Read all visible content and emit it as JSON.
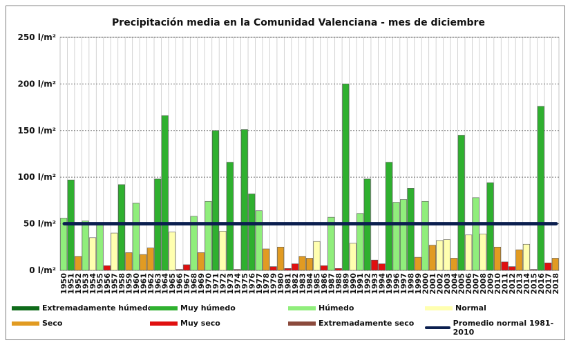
{
  "chart_data": {
    "type": "bar",
    "title": "Precipitación media en la Comunidad Valenciana - mes de diciembre",
    "ylim": [
      0,
      250
    ],
    "yticks": [
      "0 l/m²",
      "50 l/m²",
      "100 l/m²",
      "150 l/m²",
      "200 l/m²",
      "250 l/m²"
    ],
    "ytick_values": [
      0,
      50,
      100,
      150,
      200,
      250
    ],
    "grid": true,
    "categories": [
      "1950",
      "1951",
      "1952",
      "1953",
      "1954",
      "1955",
      "1956",
      "1957",
      "1958",
      "1959",
      "1960",
      "1961",
      "1962",
      "1963",
      "1964",
      "1965",
      "1966",
      "1967",
      "1968",
      "1969",
      "1970",
      "1971",
      "1972",
      "1973",
      "1974",
      "1975",
      "1976",
      "1977",
      "1978",
      "1979",
      "1980",
      "1981",
      "1982",
      "1983",
      "1984",
      "1985",
      "1986",
      "1987",
      "1988",
      "1989",
      "1990",
      "1991",
      "1992",
      "1993",
      "1994",
      "1995",
      "1996",
      "1997",
      "1998",
      "1999",
      "2000",
      "2001",
      "2002",
      "2003",
      "2004",
      "2005",
      "2006",
      "2007",
      "2008",
      "2009",
      "2010",
      "2011",
      "2012",
      "2013",
      "2014",
      "2015",
      "2016",
      "2017",
      "2018"
    ],
    "values": [
      56,
      97,
      15,
      53,
      35,
      50,
      5,
      40,
      92,
      19,
      72,
      17,
      24,
      98,
      166,
      41,
      1,
      6,
      58,
      19,
      74,
      150,
      42,
      116,
      1,
      151,
      82,
      64,
      23,
      4,
      25,
      2,
      7,
      15,
      13,
      31,
      5,
      57,
      2,
      200,
      29,
      61,
      98,
      11,
      7,
      116,
      73,
      76,
      88,
      14,
      74,
      27,
      32,
      33,
      13,
      145,
      38,
      78,
      39,
      94,
      25,
      9,
      4,
      22,
      28,
      1,
      176,
      8,
      13
    ],
    "classes": [
      "humedo",
      "muy_humedo",
      "seco",
      "humedo",
      "normal",
      "humedo",
      "muy_seco",
      "normal",
      "muy_humedo",
      "seco",
      "humedo",
      "seco",
      "seco",
      "muy_humedo",
      "muy_humedo",
      "normal",
      "extremadamente_seco",
      "muy_seco",
      "humedo",
      "seco",
      "humedo",
      "muy_humedo",
      "normal",
      "muy_humedo",
      "extremadamente_seco",
      "muy_humedo",
      "muy_humedo",
      "humedo",
      "seco",
      "muy_seco",
      "seco",
      "muy_seco",
      "muy_seco",
      "seco",
      "seco",
      "normal",
      "muy_seco",
      "humedo",
      "muy_seco",
      "muy_humedo",
      "normal",
      "humedo",
      "muy_humedo",
      "muy_seco",
      "muy_seco",
      "muy_humedo",
      "humedo",
      "humedo",
      "muy_humedo",
      "seco",
      "humedo",
      "seco",
      "normal",
      "normal",
      "seco",
      "muy_humedo",
      "normal",
      "humedo",
      "normal",
      "muy_humedo",
      "seco",
      "muy_seco",
      "muy_seco",
      "seco",
      "normal",
      "extremadamente_seco",
      "muy_humedo",
      "muy_seco",
      "seco"
    ],
    "reference_line": {
      "name": "Promedio normal 1981-2010",
      "value": 50,
      "color": "#0b1f4f"
    },
    "class_colors": {
      "extremadamente_humedo": "#0f6b1a",
      "muy_humedo": "#2fb02f",
      "humedo": "#90ee7c",
      "normal": "#ffffb0",
      "seco": "#e19b22",
      "muy_seco": "#e01010",
      "extremadamente_seco": "#8b4a3c"
    },
    "legend": [
      {
        "key": "extremadamente_humedo",
        "label": "Extremadamente húmedo"
      },
      {
        "key": "muy_humedo",
        "label": "Muy húmedo"
      },
      {
        "key": "humedo",
        "label": "Húmedo"
      },
      {
        "key": "normal",
        "label": "Normal"
      },
      {
        "key": "seco",
        "label": "Seco"
      },
      {
        "key": "muy_seco",
        "label": "Muy seco"
      },
      {
        "key": "extremadamente_seco",
        "label": "Extremadamente seco"
      },
      {
        "key": "reference",
        "label": "Promedio normal 1981-2010"
      }
    ]
  }
}
